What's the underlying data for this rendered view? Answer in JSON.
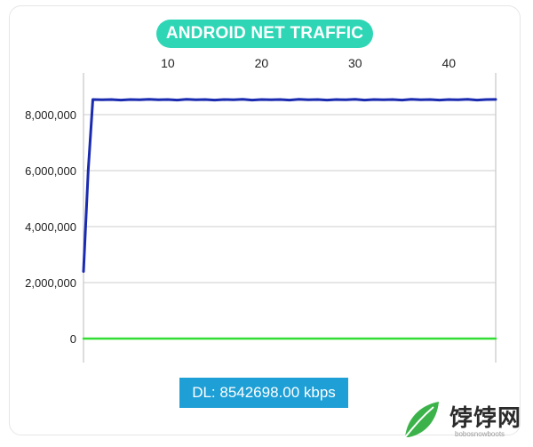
{
  "title": "ANDROID NET TRAFFIC",
  "status": {
    "label": "DL: 8542698.00 kbps"
  },
  "watermark": {
    "text": "饽饽网",
    "sub": "bobosnowboots"
  },
  "colors": {
    "title_bg": "#2ed6b6",
    "badge_bg": "#1e9fd6",
    "series_dl": "#1a2bb0",
    "series_zero": "#33dd33",
    "grid": "#cccccc"
  },
  "chart_data": {
    "type": "line",
    "title": "ANDROID NET TRAFFIC",
    "xlabel": "",
    "ylabel": "",
    "x_axis_position": "top",
    "xlim": [
      1,
      45
    ],
    "ylim": [
      0,
      9000000
    ],
    "x_ticks": [
      10,
      20,
      30,
      40
    ],
    "x_tick_labels": [
      "10",
      "20",
      "30",
      "40"
    ],
    "y_ticks": [
      0,
      2000000,
      4000000,
      6000000,
      8000000
    ],
    "y_tick_labels": [
      "0",
      "2,000,000",
      "4,000,000",
      "6,000,000",
      "8,000,000"
    ],
    "grid": true,
    "legend": "none",
    "series": [
      {
        "color": "#1a2bb0",
        "x": [
          1,
          1.5,
          2,
          3,
          4,
          5,
          6,
          7,
          8,
          9,
          10,
          11,
          12,
          13,
          14,
          15,
          16,
          17,
          18,
          19,
          20,
          21,
          22,
          23,
          24,
          25,
          26,
          27,
          28,
          29,
          30,
          31,
          32,
          33,
          34,
          35,
          36,
          37,
          38,
          39,
          40,
          41,
          42,
          43,
          44,
          45
        ],
        "values": [
          2400000,
          6000000,
          8540000,
          8530000,
          8540000,
          8520000,
          8540000,
          8530000,
          8550000,
          8530000,
          8540000,
          8520000,
          8550000,
          8530000,
          8540000,
          8520000,
          8540000,
          8530000,
          8550000,
          8520000,
          8540000,
          8530000,
          8540000,
          8520000,
          8550000,
          8530000,
          8540000,
          8520000,
          8540000,
          8530000,
          8550000,
          8520000,
          8540000,
          8530000,
          8540000,
          8520000,
          8550000,
          8530000,
          8540000,
          8520000,
          8540000,
          8530000,
          8550000,
          8520000,
          8540000,
          8542698
        ]
      },
      {
        "color": "#33dd33",
        "x": [
          1,
          45
        ],
        "values": [
          0,
          0
        ]
      }
    ]
  }
}
